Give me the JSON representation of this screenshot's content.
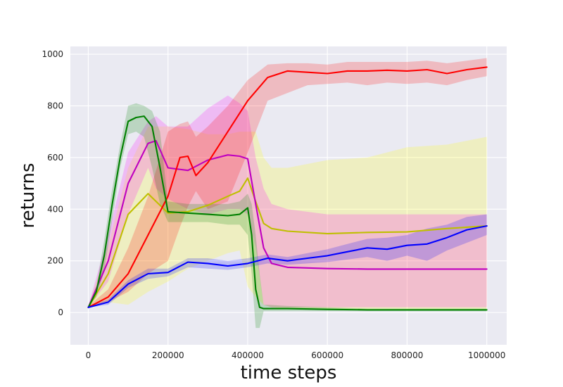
{
  "chart_data": {
    "type": "line",
    "title": "",
    "xlabel": "time steps",
    "ylabel": "returns",
    "xlim": [
      -45000,
      1050000
    ],
    "ylim": [
      -125,
      1030
    ],
    "xticks": [
      0,
      200000,
      400000,
      600000,
      800000,
      1000000
    ],
    "xtick_labels": [
      "0",
      "200000",
      "400000",
      "600000",
      "800000",
      "1000000"
    ],
    "yticks": [
      0,
      200,
      400,
      600,
      800,
      1000
    ],
    "ytick_labels": [
      "0",
      "200",
      "400",
      "600",
      "800",
      "1000"
    ],
    "grid": true,
    "background_color": "#eaeaf2",
    "series": [
      {
        "color": "#ffff00",
        "color_hex": "#bfbf00",
        "x": [
          0,
          50000,
          100000,
          150000,
          200000,
          250000,
          300000,
          350000,
          380000,
          400000,
          420000,
          440000,
          460000,
          500000,
          600000,
          700000,
          800000,
          900000,
          1000000
        ],
        "y": [
          20,
          150,
          380,
          460,
          385,
          390,
          415,
          450,
          470,
          520,
          430,
          345,
          325,
          315,
          305,
          310,
          312,
          325,
          335
        ],
        "lower": [
          20,
          40,
          30,
          80,
          120,
          170,
          200,
          230,
          240,
          100,
          60,
          30,
          20,
          15,
          10,
          10,
          10,
          10,
          10
        ],
        "upper": [
          25,
          260,
          560,
          720,
          720,
          710,
          690,
          690,
          700,
          700,
          700,
          600,
          560,
          560,
          590,
          600,
          640,
          650,
          680
        ]
      },
      {
        "color": "#ff00ff",
        "color_hex": "#bf00bf",
        "x": [
          0,
          50000,
          100000,
          150000,
          170000,
          200000,
          250000,
          300000,
          350000,
          380000,
          400000,
          420000,
          440000,
          460000,
          500000,
          600000,
          700000,
          800000,
          900000,
          1000000
        ],
        "y": [
          20,
          200,
          500,
          655,
          665,
          560,
          550,
          590,
          610,
          605,
          595,
          420,
          250,
          190,
          175,
          170,
          168,
          168,
          168,
          168
        ],
        "lower": [
          20,
          120,
          380,
          560,
          480,
          440,
          400,
          380,
          400,
          400,
          380,
          250,
          30,
          20,
          20,
          20,
          20,
          20,
          20,
          20
        ],
        "upper": [
          25,
          300,
          620,
          740,
          760,
          720,
          720,
          790,
          840,
          810,
          780,
          600,
          480,
          420,
          400,
          380,
          380,
          380,
          380,
          380
        ]
      },
      {
        "color": "#ff0000",
        "color_hex": "#ff0000",
        "x": [
          0,
          50000,
          100000,
          150000,
          200000,
          230000,
          250000,
          270000,
          300000,
          350000,
          400000,
          450000,
          500000,
          550000,
          600000,
          650000,
          700000,
          750000,
          800000,
          850000,
          900000,
          950000,
          1000000
        ],
        "y": [
          20,
          60,
          150,
          300,
          450,
          600,
          605,
          530,
          580,
          700,
          820,
          910,
          935,
          930,
          925,
          935,
          935,
          938,
          935,
          940,
          925,
          940,
          950
        ],
        "lower": [
          20,
          40,
          80,
          150,
          200,
          330,
          410,
          470,
          400,
          430,
          620,
          820,
          850,
          880,
          885,
          890,
          880,
          890,
          885,
          890,
          880,
          900,
          915
        ],
        "upper": [
          25,
          90,
          250,
          450,
          700,
          730,
          740,
          680,
          720,
          800,
          900,
          960,
          965,
          965,
          960,
          970,
          970,
          970,
          970,
          975,
          965,
          975,
          985
        ]
      },
      {
        "color": "#008000",
        "color_hex": "#008000",
        "x": [
          0,
          20000,
          40000,
          60000,
          80000,
          100000,
          120000,
          140000,
          160000,
          180000,
          200000,
          250000,
          300000,
          350000,
          380000,
          400000,
          410000,
          420000,
          430000,
          440000,
          450000,
          500000,
          600000,
          700000,
          800000,
          900000,
          1000000
        ],
        "y": [
          20,
          80,
          220,
          420,
          600,
          740,
          755,
          760,
          720,
          560,
          390,
          385,
          380,
          375,
          380,
          405,
          300,
          90,
          20,
          15,
          15,
          15,
          12,
          10,
          10,
          10,
          10
        ],
        "lower": [
          20,
          60,
          160,
          360,
          560,
          690,
          700,
          680,
          560,
          420,
          350,
          350,
          350,
          340,
          340,
          300,
          150,
          -60,
          -60,
          5,
          5,
          5,
          5,
          5,
          5,
          5,
          5
        ],
        "upper": [
          25,
          100,
          280,
          480,
          650,
          800,
          810,
          800,
          780,
          700,
          430,
          420,
          420,
          420,
          430,
          460,
          420,
          300,
          150,
          30,
          30,
          25,
          20,
          15,
          15,
          15,
          15
        ]
      },
      {
        "color": "#0000ff",
        "color_hex": "#0000ff",
        "x": [
          0,
          50000,
          100000,
          150000,
          200000,
          250000,
          300000,
          350000,
          400000,
          450000,
          500000,
          550000,
          600000,
          650000,
          700000,
          750000,
          800000,
          850000,
          900000,
          950000,
          1000000
        ],
        "y": [
          20,
          40,
          110,
          150,
          155,
          195,
          190,
          180,
          190,
          210,
          200,
          210,
          220,
          235,
          250,
          245,
          260,
          265,
          290,
          320,
          335
        ],
        "lower": [
          20,
          30,
          95,
          130,
          140,
          175,
          170,
          165,
          175,
          190,
          185,
          190,
          195,
          205,
          215,
          200,
          220,
          200,
          240,
          270,
          300
        ],
        "upper": [
          25,
          50,
          125,
          170,
          170,
          210,
          210,
          200,
          210,
          225,
          215,
          230,
          245,
          265,
          285,
          290,
          300,
          325,
          340,
          370,
          380
        ]
      }
    ]
  }
}
